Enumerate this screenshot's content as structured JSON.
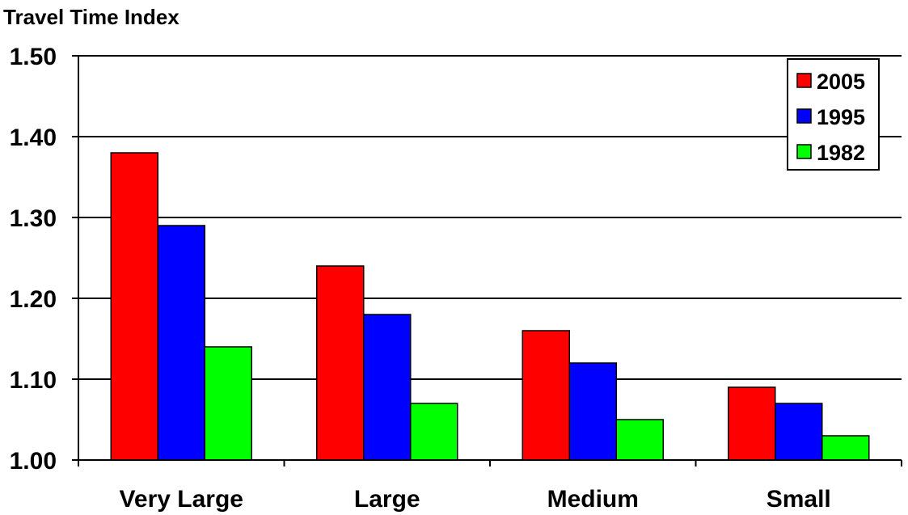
{
  "chart_data": {
    "type": "bar",
    "title": "Travel Time Index",
    "categories": [
      "Very Large",
      "Large",
      "Medium",
      "Small"
    ],
    "series": [
      {
        "name": "2005",
        "color": "#ff0000",
        "values": [
          1.38,
          1.24,
          1.16,
          1.09
        ]
      },
      {
        "name": "1995",
        "color": "#0000ff",
        "values": [
          1.29,
          1.18,
          1.12,
          1.07
        ]
      },
      {
        "name": "1982",
        "color": "#00ff00",
        "values": [
          1.14,
          1.07,
          1.05,
          1.03
        ]
      }
    ],
    "ylim": [
      1.0,
      1.5
    ],
    "yticks": [
      "1.00",
      "1.10",
      "1.20",
      "1.30",
      "1.40",
      "1.50"
    ],
    "grid": true,
    "legend": "top-right"
  }
}
